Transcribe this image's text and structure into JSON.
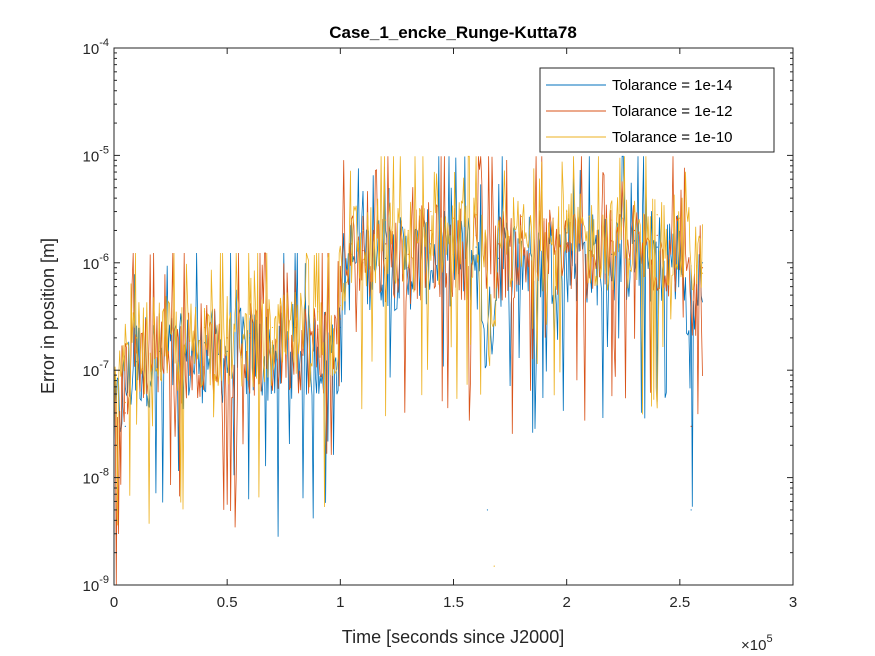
{
  "chart_data": {
    "type": "line",
    "title": "Case_1_encke_Runge-Kutta78",
    "xlabel": "Time [seconds since J2000]",
    "ylabel": "Error in position [m]",
    "xlim": [
      0,
      300000
    ],
    "ylim": [
      1e-09,
      0.0001
    ],
    "yscale": "log",
    "x_ticks": [
      0,
      50000,
      100000,
      150000,
      200000,
      250000,
      300000
    ],
    "x_tick_labels": [
      "0",
      "0.5",
      "1",
      "1.5",
      "2",
      "2.5",
      "3"
    ],
    "x_exponent_label": "×10",
    "x_exponent_power": "5",
    "y_ticks": [
      1e-09,
      1e-08,
      1e-07,
      1e-06,
      1e-05,
      0.0001
    ],
    "y_tick_base": "10",
    "y_tick_powers": [
      "-9",
      "-8",
      "-7",
      "-6",
      "-5",
      "-4"
    ],
    "grid": false,
    "legend_position": "top-right",
    "x_range_data": [
      0,
      260000
    ],
    "series": [
      {
        "name": "Tolarance = 1e-14",
        "color": "#0072BD",
        "x": [
          0,
          5000,
          10000,
          20000,
          30000,
          40000,
          50000,
          60000,
          70000,
          80000,
          90000,
          100000,
          105000,
          110000,
          120000,
          130000,
          140000,
          150000,
          160000,
          165000,
          170000,
          180000,
          190000,
          200000,
          210000,
          220000,
          230000,
          240000,
          250000,
          255000,
          260000
        ],
        "y": [
          2e-09,
          3e-08,
          1.2e-07,
          1.5e-07,
          1.2e-07,
          1.8e-07,
          1.5e-07,
          2e-07,
          1.6e-07,
          2.5e-07,
          2e-07,
          2.5e-07,
          1.2e-06,
          1e-06,
          1.1e-06,
          9e-07,
          1.5e-06,
          1.2e-06,
          1.4e-06,
          5e-09,
          1.1e-06,
          1.3e-06,
          1.2e-06,
          1.5e-06,
          1.3e-06,
          1.2e-06,
          1.6e-06,
          1.4e-06,
          1.3e-06,
          5e-09,
          1e-06
        ]
      },
      {
        "name": "Tolarance = 1e-12",
        "color": "#D95319",
        "x": [
          0,
          5000,
          10000,
          20000,
          30000,
          40000,
          50000,
          60000,
          70000,
          80000,
          90000,
          100000,
          105000,
          110000,
          120000,
          130000,
          140000,
          150000,
          160000,
          170000,
          180000,
          190000,
          200000,
          210000,
          220000,
          230000,
          240000,
          250000,
          255000,
          260000
        ],
        "y": [
          3e-09,
          4e-08,
          1.5e-07,
          2e-07,
          1.5e-07,
          2.5e-07,
          2e-07,
          2.2e-07,
          1.8e-07,
          3e-07,
          2.4e-07,
          3e-07,
          1.5e-06,
          1.3e-06,
          1.5e-06,
          1.2e-06,
          2e-06,
          1.6e-06,
          1.8e-06,
          1.5e-06,
          1.7e-06,
          1.6e-06,
          1.9e-06,
          1.7e-06,
          1.6e-06,
          2e-06,
          1.8e-06,
          1.7e-06,
          3e-08,
          9e-07
        ]
      },
      {
        "name": "Tolarance = 1e-10",
        "color": "#EDB120",
        "x": [
          0,
          5000,
          10000,
          20000,
          30000,
          40000,
          50000,
          60000,
          70000,
          80000,
          90000,
          100000,
          105000,
          110000,
          120000,
          130000,
          140000,
          150000,
          160000,
          168000,
          170000,
          180000,
          190000,
          200000,
          210000,
          220000,
          230000,
          240000,
          250000,
          260000
        ],
        "y": [
          4e-09,
          5e-08,
          2e-07,
          3e-07,
          2e-07,
          3.5e-07,
          3e-07,
          3e-07,
          2.5e-07,
          4e-07,
          3.5e-07,
          4e-07,
          2.5e-06,
          2e-06,
          2.5e-06,
          2e-06,
          3e-06,
          2.6e-06,
          2.8e-06,
          1.5e-09,
          2.4e-06,
          2.7e-06,
          2.5e-06,
          3e-06,
          2.7e-06,
          2.5e-06,
          3e-06,
          2.8e-06,
          2.6e-06,
          8e-07
        ]
      }
    ]
  }
}
